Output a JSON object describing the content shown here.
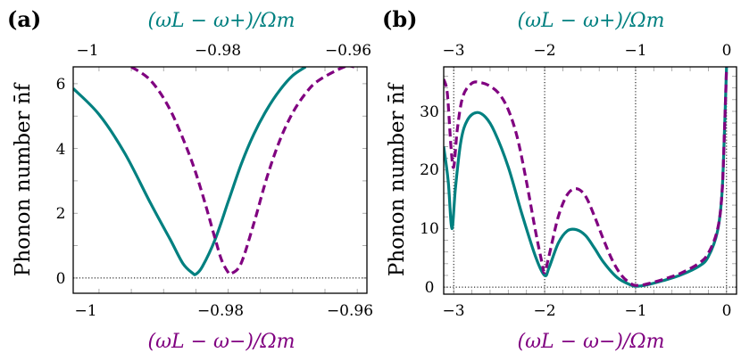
{
  "colors": {
    "teal": "#008080",
    "purple": "#800080",
    "axis": "#000000"
  },
  "panels": {
    "a": {
      "label": "(a)",
      "top_axis_title": "(ωL − ω+)/Ωm",
      "bottom_axis_title": "(ωL − ω−)/Ωm",
      "ylabel": "Phonon number n̄f",
      "top_ticks": [
        "−1",
        "−0.98",
        "−0.96"
      ],
      "bottom_ticks": [
        "−1",
        "−0.98",
        "−0.96"
      ],
      "y_ticks": [
        "0",
        "2",
        "4",
        "6"
      ]
    },
    "b": {
      "label": "(b)",
      "top_axis_title": "(ωL − ω+)/Ωm",
      "bottom_axis_title": "(ωL − ω−)/Ωm",
      "ylabel": "Phonon number n̄f",
      "top_ticks": [
        "−3",
        "−2",
        "−1",
        "0"
      ],
      "bottom_ticks": [
        "−3",
        "−2",
        "−1",
        "0"
      ],
      "y_ticks": [
        "0",
        "10",
        "20",
        "30"
      ]
    }
  },
  "chart_data": [
    {
      "type": "line",
      "title": "(a)",
      "xlabel": "(ωL − ω−)/Ωm",
      "x2label": "(ωL − ω+)/Ωm",
      "ylabel": "Phonon number n̄f",
      "xlim": [
        -1.004,
        -0.9585
      ],
      "ylim": [
        -0.47,
        6.52
      ],
      "xticks": [
        -1,
        -0.98,
        -0.96
      ],
      "yticks": [
        0,
        2,
        4,
        6
      ],
      "grid": false,
      "reference_lines": [
        {
          "orientation": "horizontal",
          "y": 0,
          "style": "dotted"
        }
      ],
      "series": [
        {
          "name": "vs (ωL − ω+)/Ωm (top axis)",
          "color": "#008080",
          "style": "solid",
          "x": [
            -1.004,
            -1.0,
            -0.996,
            -0.992,
            -0.989,
            -0.987,
            -0.9855,
            -0.985,
            -0.984,
            -0.982,
            -0.98,
            -0.978,
            -0.976,
            -0.974,
            -0.972,
            -0.97,
            -0.968
          ],
          "y": [
            5.85,
            5.05,
            3.85,
            2.3,
            1.2,
            0.45,
            0.15,
            0.12,
            0.35,
            1.2,
            2.35,
            3.5,
            4.45,
            5.2,
            5.8,
            6.25,
            6.52
          ]
        },
        {
          "name": "vs (ωL − ω−)/Ωm (bottom axis)",
          "color": "#800080",
          "style": "dashed",
          "x": [
            -0.995,
            -0.992,
            -0.989,
            -0.986,
            -0.984,
            -0.982,
            -0.981,
            -0.98,
            -0.9795,
            -0.978,
            -0.976,
            -0.974,
            -0.972,
            -0.97,
            -0.968,
            -0.966,
            -0.962,
            -0.9605
          ],
          "y": [
            6.52,
            6.1,
            5.2,
            3.8,
            2.6,
            1.2,
            0.55,
            0.18,
            0.14,
            0.45,
            1.7,
            3.1,
            4.25,
            5.1,
            5.7,
            6.1,
            6.52,
            6.52
          ]
        }
      ]
    },
    {
      "type": "line",
      "title": "(b)",
      "xlabel": "(ωL − ω−)/Ωm",
      "x2label": "(ωL − ω+)/Ωm",
      "ylabel": "Phonon number n̄f",
      "xlim": [
        -3.11,
        0.11
      ],
      "ylim": [
        -1.2,
        37.6
      ],
      "xticks": [
        -3,
        -2,
        -1,
        0
      ],
      "yticks": [
        0,
        10,
        20,
        30
      ],
      "grid": false,
      "reference_lines": [
        {
          "orientation": "horizontal",
          "y": 0,
          "style": "dotted"
        },
        {
          "orientation": "vertical",
          "x": -3,
          "style": "dotted"
        },
        {
          "orientation": "vertical",
          "x": -2,
          "style": "dotted"
        },
        {
          "orientation": "vertical",
          "x": -1,
          "style": "dotted"
        },
        {
          "orientation": "vertical",
          "x": 0,
          "style": "dotted"
        }
      ],
      "series": [
        {
          "name": "vs (ωL − ω+)/Ωm (top axis)",
          "color": "#008080",
          "style": "solid",
          "x": [
            -3.11,
            -3.06,
            -3.02,
            -2.98,
            -2.92,
            -2.85,
            -2.75,
            -2.65,
            -2.55,
            -2.4,
            -2.25,
            -2.1,
            -2.0,
            -1.95,
            -1.85,
            -1.75,
            -1.65,
            -1.55,
            -1.45,
            -1.35,
            -1.2,
            -1.05,
            -1.0,
            -0.9,
            -0.7,
            -0.5,
            -0.3,
            -0.2,
            -0.1,
            -0.05,
            -0.02,
            0.0
          ],
          "y": [
            24,
            18,
            10,
            17,
            25,
            28.5,
            29.8,
            29.0,
            26.5,
            20.5,
            12.5,
            5.2,
            2.0,
            3.4,
            7.5,
            9.6,
            9.8,
            8.8,
            6.6,
            4.2,
            1.6,
            0.35,
            0.15,
            0.3,
            1.1,
            2.1,
            3.6,
            5.2,
            9.5,
            16,
            28,
            37.6
          ]
        },
        {
          "name": "vs (ωL − ω−)/Ωm (bottom axis)",
          "color": "#800080",
          "style": "dashed",
          "x": [
            -3.11,
            -3.07,
            -3.03,
            -3.0,
            -2.96,
            -2.9,
            -2.8,
            -2.7,
            -2.6,
            -2.5,
            -2.4,
            -2.3,
            -2.2,
            -2.1,
            -2.03,
            -2.0,
            -1.95,
            -1.85,
            -1.75,
            -1.65,
            -1.55,
            -1.45,
            -1.35,
            -1.25,
            -1.15,
            -1.05,
            -1.0,
            -0.9,
            -0.7,
            -0.5,
            -0.3,
            -0.2,
            -0.1,
            -0.05,
            -0.02,
            0.0
          ],
          "y": [
            35.5,
            33,
            24,
            20.5,
            27,
            32.5,
            34.8,
            34.9,
            34.3,
            33,
            30.3,
            25.5,
            18,
            9.5,
            4.2,
            2.5,
            5.5,
            12,
            15.8,
            16.8,
            15.5,
            12,
            8,
            4.4,
            1.9,
            0.6,
            0.3,
            0.45,
            1.3,
            2.4,
            4.1,
            5.8,
            9.8,
            16,
            28,
            37.6
          ]
        }
      ]
    }
  ]
}
